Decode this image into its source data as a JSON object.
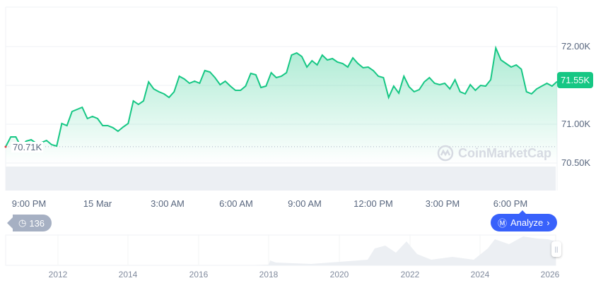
{
  "chart_data": {
    "type": "area",
    "y_ticks": [
      "72.00K",
      "71.00K",
      "70.50K"
    ],
    "ylim": [
      70300,
      72100
    ],
    "x_ticks": [
      "9:00 PM",
      "15 Mar",
      "3:00 AM",
      "6:00 AM",
      "9:00 AM",
      "12:00 PM",
      "3:00 PM",
      "6:00 PM"
    ],
    "open_price_label": "70.71K",
    "open_price": 70710,
    "current_price_label": "71.55K",
    "current_price": 71550,
    "grid": true,
    "line_color": "#16c784",
    "down_color": "#ea3943",
    "values": [
      70709,
      70836,
      70836,
      70709,
      70782,
      70800,
      70755,
      70764,
      70791,
      70736,
      70718,
      71009,
      70982,
      71164,
      71191,
      71218,
      71073,
      71100,
      71073,
      70982,
      70982,
      70955,
      70909,
      70964,
      71009,
      71300,
      71255,
      71300,
      71545,
      71455,
      71418,
      71391,
      71345,
      71418,
      71618,
      71582,
      71527,
      71555,
      71527,
      71691,
      71673,
      71600,
      71509,
      71555,
      71491,
      71436,
      71436,
      71491,
      71655,
      71636,
      71473,
      71491,
      71664,
      71600,
      71618,
      71664,
      71891,
      71918,
      71873,
      71736,
      71818,
      71764,
      71891,
      71827,
      71845,
      71800,
      71782,
      71736,
      71855,
      71782,
      71727,
      71736,
      71691,
      71618,
      71600,
      71345,
      71491,
      71400,
      71618,
      71482,
      71418,
      71445,
      71545,
      71600,
      71527,
      71509,
      71527,
      71455,
      71573,
      71418,
      71391,
      71509,
      71436,
      71500,
      71491,
      71573,
      71982,
      71827,
      71782,
      71736,
      71764,
      71709,
      71418,
      71391,
      71455,
      71491,
      71527,
      71491,
      71550
    ]
  },
  "navigator": {
    "year_ticks": [
      "2012",
      "2014",
      "2016",
      "2018",
      "2020",
      "2022",
      "2024",
      "2026"
    ]
  },
  "watermark": "CoinMarketCap",
  "buttons": {
    "history_count": "136",
    "analyze_label": "Analyze"
  },
  "icons": {
    "history": "history-clock-icon",
    "analyze": "cmc-ai-icon",
    "chevron": "chevron-right-icon"
  }
}
